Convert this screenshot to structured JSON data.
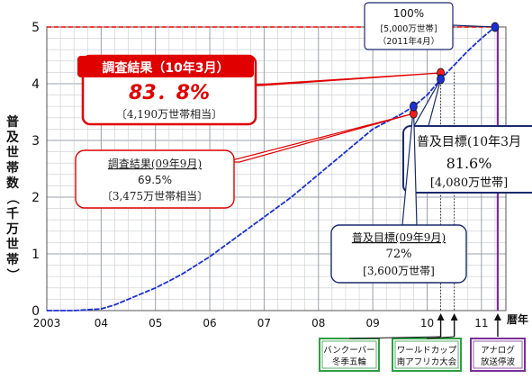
{
  "chart_data": {
    "type": "line",
    "ylabel": "普及世帯数（千万世帯）",
    "xlabel": "暦年",
    "ylim": [
      0,
      5
    ],
    "xlim": [
      2003,
      2011.45
    ],
    "y_ticks": [
      "0",
      "1",
      "2",
      "3",
      "4",
      "5"
    ],
    "x_ticks": [
      {
        "x": 2003,
        "label": "2003"
      },
      {
        "x": 2004,
        "label": "04"
      },
      {
        "x": 2005,
        "label": "05"
      },
      {
        "x": 2006,
        "label": "06"
      },
      {
        "x": 2007,
        "label": "07"
      },
      {
        "x": 2008,
        "label": "08"
      },
      {
        "x": 2009,
        "label": "09"
      },
      {
        "x": 2010,
        "label": "10"
      },
      {
        "x": 2011,
        "label": "11"
      }
    ],
    "grid": true,
    "series": [
      {
        "color": "#1a2fd6",
        "x": [
          2003.0,
          2003.5,
          2004.0,
          2004.25,
          2004.5,
          2004.75,
          2005.0,
          2005.25,
          2005.5,
          2005.75,
          2006.0,
          2006.5,
          2007.0,
          2007.5,
          2008.0,
          2008.5,
          2009.0,
          2009.5,
          2009.75,
          2010.0,
          2010.25,
          2010.5,
          2010.75,
          2011.0,
          2011.25
        ],
        "values": [
          0.0,
          0.0,
          0.03,
          0.1,
          0.2,
          0.3,
          0.4,
          0.52,
          0.65,
          0.8,
          0.95,
          1.3,
          1.65,
          2.0,
          2.4,
          2.8,
          3.2,
          3.45,
          3.6,
          3.8,
          4.08,
          4.33,
          4.58,
          4.8,
          5.0
        ]
      }
    ],
    "target_line": {
      "value": 5,
      "color": "#ff0000"
    },
    "points": [
      {
        "x": 2009.75,
        "y": 3.475,
        "color": "#ff1a1a"
      },
      {
        "x": 2009.75,
        "y": 3.6,
        "color": "#1a2fd6"
      },
      {
        "x": 2010.25,
        "y": 4.19,
        "color": "#ff1a1a"
      },
      {
        "x": 2010.25,
        "y": 4.08,
        "color": "#1a2fd6"
      },
      {
        "x": 2011.25,
        "y": 5.0,
        "color": "#1a2fd6"
      }
    ],
    "annotations": {
      "survey_2010": {
        "title": "調査結果（10年3月）",
        "value": "83．8%",
        "households": "〔4,190万世帯相当〕"
      },
      "survey_2009": {
        "title": "調査結果(09年9月)",
        "value": "69.5%",
        "households": "〔3,475万世帯相当〕"
      },
      "target_2010": {
        "title": "普及目標(10年3月",
        "value": "81.6%",
        "households": "[4,080万世帯]"
      },
      "target_2009": {
        "title": "普及目標(09年9月)",
        "value": "72%",
        "households": "[3,600万世帯]"
      },
      "target_2011": {
        "value": "100%",
        "households": "[5,000万世帯]",
        "date": "（2011年4月）"
      }
    },
    "events": [
      {
        "x": 2010.25,
        "lines": [
          "バンクーバー",
          "冬季五輪"
        ],
        "color": "#2e9e44"
      },
      {
        "x": 2010.5,
        "lines": [
          "ワールドカップ",
          "南アフリカ大会"
        ],
        "color": "#2e9e44"
      },
      {
        "x": 2011.3,
        "lines": [
          "アナログ",
          "放送停波"
        ],
        "color": "#7a2f9a"
      }
    ]
  }
}
